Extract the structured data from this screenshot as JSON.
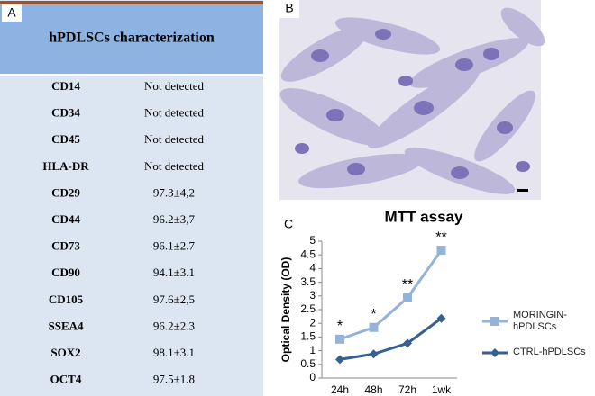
{
  "panels": {
    "a": "A",
    "b": "B",
    "c": "C"
  },
  "table": {
    "title": "hPDLSCs characterization",
    "rows": [
      [
        "CD14",
        "Not detected"
      ],
      [
        "CD34",
        "Not detected"
      ],
      [
        "CD45",
        "Not detected"
      ],
      [
        "HLA-DR",
        "Not detected"
      ],
      [
        "CD29",
        "97.3±4,2"
      ],
      [
        "CD44",
        "96.2±3,7"
      ],
      [
        "CD73",
        "96.1±2.7"
      ],
      [
        "CD90",
        "94.1±3.1"
      ],
      [
        "CD105",
        "97.6±2,5"
      ],
      [
        "SSEA4",
        "96.2±2.3"
      ],
      [
        "SOX2",
        "98.1±3.1"
      ],
      [
        "OCT4",
        "97.5±1.8"
      ]
    ]
  },
  "chart_data": {
    "type": "line",
    "title": "MTT assay",
    "y_label": "Optical Density (OD)",
    "categories": [
      "24h",
      "48h",
      "72h",
      "1wk"
    ],
    "series": [
      {
        "name": "MORINGIN-hPDLSCs",
        "color": "#95b3d7",
        "marker": "square",
        "values": [
          1.42,
          1.85,
          2.93,
          4.67
        ],
        "annotations": [
          "*",
          "*",
          "**",
          "**"
        ]
      },
      {
        "name": "CTRL-hPDLSCs",
        "color": "#366092",
        "marker": "diamond",
        "values": [
          0.68,
          0.88,
          1.27,
          2.18
        ]
      }
    ],
    "ylim": [
      0,
      5
    ],
    "yticks": [
      0,
      0.5,
      1,
      1.5,
      2,
      2.5,
      3,
      3.5,
      4,
      4.5,
      5
    ],
    "grid": false,
    "legend": "right"
  }
}
